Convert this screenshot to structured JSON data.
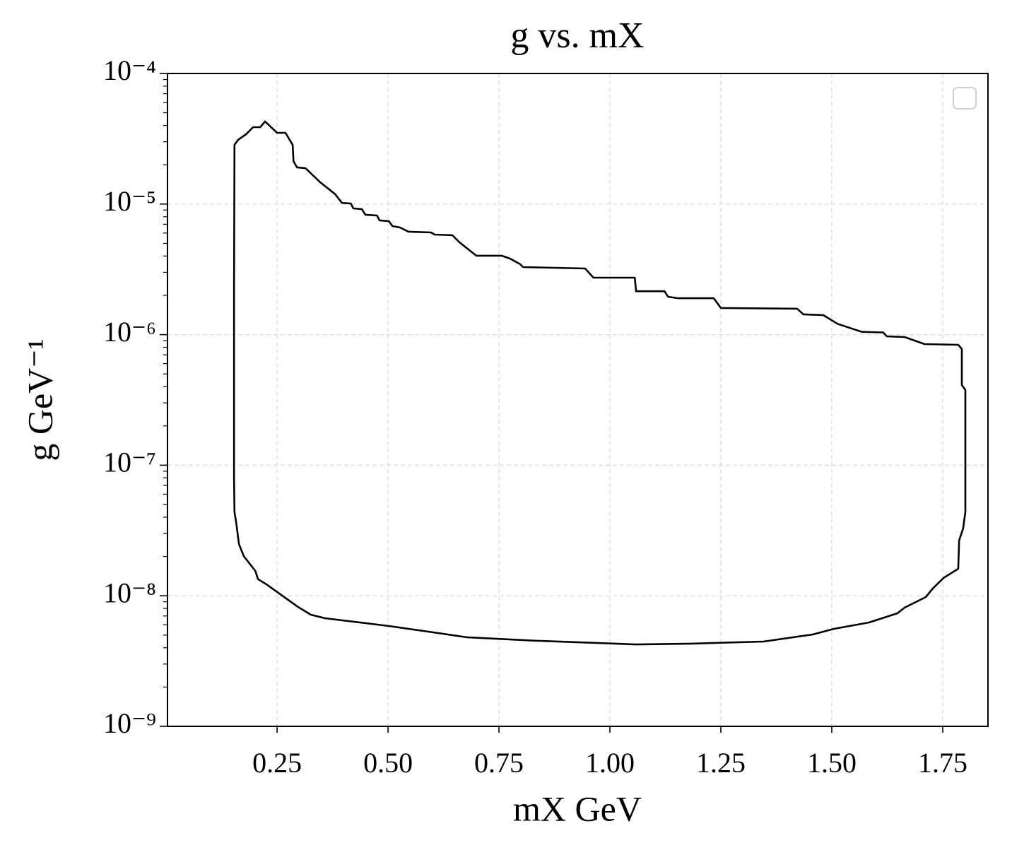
{
  "chart_data": {
    "type": "line",
    "title": "g vs. mX",
    "xlabel": "mX GeV",
    "ylabel": "g GeV⁻¹",
    "x": [
      0.154,
      0.153,
      0.153,
      0.154,
      0.162,
      0.18,
      0.196,
      0.212,
      0.223,
      0.24,
      0.25,
      0.269,
      0.285,
      0.287,
      0.295,
      0.314,
      0.347,
      0.381,
      0.396,
      0.416,
      0.422,
      0.441,
      0.449,
      0.475,
      0.481,
      0.502,
      0.51,
      0.527,
      0.546,
      0.597,
      0.605,
      0.645,
      0.661,
      0.699,
      0.756,
      0.775,
      0.798,
      0.804,
      0.944,
      0.963,
      1.056,
      1.059,
      1.123,
      1.131,
      1.154,
      1.234,
      1.25,
      1.422,
      1.436,
      1.481,
      1.513,
      1.553,
      1.568,
      1.616,
      1.624,
      1.664,
      1.709,
      1.785,
      1.793,
      1.793,
      1.801,
      1.801,
      1.796,
      1.787,
      1.785,
      1.752,
      1.728,
      1.712,
      1.664,
      1.648,
      1.584,
      1.505,
      1.457,
      1.346,
      1.186,
      1.059,
      0.836,
      0.677,
      0.613,
      0.502,
      0.358,
      0.326,
      0.295,
      0.228,
      0.207,
      0.201,
      0.175,
      0.164,
      0.158,
      0.154
    ],
    "series": [
      {
        "color": "#000000",
        "values": [
          4.37e-08,
          7.64e-08,
          2.5e-06,
          2.84e-05,
          3.1e-05,
          3.42e-05,
          3.88e-05,
          3.88e-05,
          4.29e-05,
          3.78e-05,
          3.51e-05,
          3.51e-05,
          2.84e-05,
          2.13e-05,
          1.91e-05,
          1.88e-05,
          1.47e-05,
          1.19e-05,
          1.02e-05,
          1.01e-05,
          9.26e-06,
          9.14e-06,
          8.28e-06,
          8.17e-06,
          7.49e-06,
          7.4e-06,
          6.78e-06,
          6.61e-06,
          6.14e-06,
          6.06e-06,
          5.84e-06,
          5.77e-06,
          5.09e-06,
          4.02e-06,
          4.02e-06,
          3.82e-06,
          3.46e-06,
          3.29e-06,
          3.21e-06,
          2.73e-06,
          2.73e-06,
          2.15e-06,
          2.15e-06,
          1.95e-06,
          1.9e-06,
          1.9e-06,
          1.6e-06,
          1.58e-06,
          1.43e-06,
          1.41e-06,
          1.21e-06,
          1.09e-06,
          1.05e-06,
          1.04e-06,
          9.7e-07,
          9.58e-07,
          8.46e-07,
          8.36e-07,
          7.76e-07,
          4.11e-07,
          3.77e-07,
          4.37e-08,
          3.27e-08,
          2.65e-08,
          1.61e-08,
          1.37e-08,
          1.14e-08,
          9.78e-09,
          8.11e-09,
          7.34e-09,
          6.24e-09,
          5.58e-09,
          5.05e-09,
          4.46e-09,
          4.3e-09,
          4.24e-09,
          4.52e-09,
          4.81e-09,
          5.18e-09,
          5.87e-09,
          6.73e-09,
          7.16e-09,
          8.31e-09,
          1.21e-08,
          1.34e-08,
          1.55e-08,
          2.01e-08,
          2.49e-08,
          3.62e-08,
          4.37e-08
        ]
      }
    ],
    "xlim": [
      0.003,
      1.852
    ],
    "xticks": [
      0.25,
      {
        "value": 0.5,
        "label": "0.50"
      },
      0.75,
      {
        "value": 1,
        "label": "1.00"
      },
      1.25,
      {
        "value": 1.5,
        "label": "1.50"
      },
      1.75
    ],
    "ylim": [
      1e-09,
      0.0001
    ],
    "ylog": true,
    "yticks": [
      {
        "value": 1e-09,
        "label": "10⁻⁹"
      },
      {
        "value": 1e-08,
        "label": "10⁻⁸"
      },
      {
        "value": 1e-07,
        "label": "10⁻⁷"
      },
      {
        "value": 1e-06,
        "label": "10⁻⁶"
      },
      {
        "value": 1e-05,
        "label": "10⁻⁵"
      },
      {
        "value": 0.0001,
        "label": "10⁻⁴"
      }
    ],
    "grid": true
  }
}
